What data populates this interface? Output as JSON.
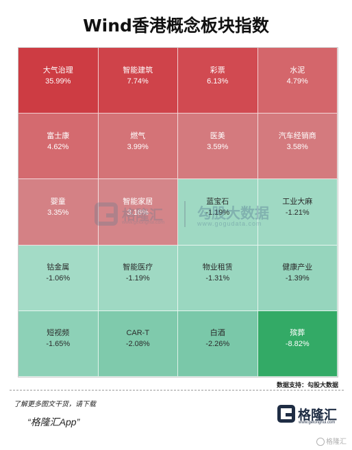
{
  "header": {
    "title": "Wind香港概念板块指数"
  },
  "chart_data": {
    "type": "heatmap",
    "title": "Wind香港概念板块指数",
    "unit": "%",
    "layout": "4-column grid, row-major",
    "cells": [
      {
        "name": "大气治理",
        "value": 35.99,
        "label": "35.99%",
        "color": "#cd3c43"
      },
      {
        "name": "智能建筑",
        "value": 7.74,
        "label": "7.74%",
        "color": "#cf434a"
      },
      {
        "name": "彩票",
        "value": 6.13,
        "label": "6.13%",
        "color": "#d14a51"
      },
      {
        "name": "水泥",
        "value": 4.79,
        "label": "4.79%",
        "color": "#d4666b"
      },
      {
        "name": "富士康",
        "value": 4.62,
        "label": "4.62%",
        "color": "#d46a6f"
      },
      {
        "name": "燃气",
        "value": 3.99,
        "label": "3.99%",
        "color": "#d47377"
      },
      {
        "name": "医美",
        "value": 3.59,
        "label": "3.59%",
        "color": "#d47a7e"
      },
      {
        "name": "汽车经销商",
        "value": 3.58,
        "label": "3.58%",
        "color": "#d47a7e"
      },
      {
        "name": "婴童",
        "value": 3.35,
        "label": "3.35%",
        "color": "#d48185"
      },
      {
        "name": "智能家居",
        "value": 3.16,
        "label": "3.16%",
        "color": "#d48589"
      },
      {
        "name": "蓝宝石",
        "value": -1.19,
        "label": "-1.19%",
        "color": "#9fd9c3"
      },
      {
        "name": "工业大麻",
        "value": -1.21,
        "label": "-1.21%",
        "color": "#9fd9c3"
      },
      {
        "name": "钴金属",
        "value": -1.06,
        "label": "-1.06%",
        "color": "#a3dbc6"
      },
      {
        "name": "智能医疗",
        "value": -1.19,
        "label": "-1.19%",
        "color": "#9fd9c3"
      },
      {
        "name": "物业租赁",
        "value": -1.31,
        "label": "-1.31%",
        "color": "#9ad7c0"
      },
      {
        "name": "健康产业",
        "value": -1.39,
        "label": "-1.39%",
        "color": "#96d5bd"
      },
      {
        "name": "短视频",
        "value": -1.65,
        "label": "-1.65%",
        "color": "#8dd1b7"
      },
      {
        "name": "CAR-T",
        "value": -2.08,
        "label": "-2.08%",
        "color": "#7fcaac"
      },
      {
        "name": "白酒",
        "value": -2.26,
        "label": "-2.26%",
        "color": "#7ac8a9"
      },
      {
        "name": "殡葬",
        "value": -8.82,
        "label": "-8.82%",
        "color": "#33aa66"
      }
    ]
  },
  "watermark": {
    "brand": "格隆汇",
    "brand_url": "www.gelonghui.com",
    "data_brand": "勾股大数据",
    "data_url": "www.gogudata.com"
  },
  "source": "数据支持：勾股大数据",
  "footer": {
    "note": "了解更多图文干货，请下载",
    "app": "“格隆汇App”",
    "logo_text": "格隆汇",
    "logo_url": "www.gelonghui.com",
    "corner_mark": "格隆汇"
  }
}
